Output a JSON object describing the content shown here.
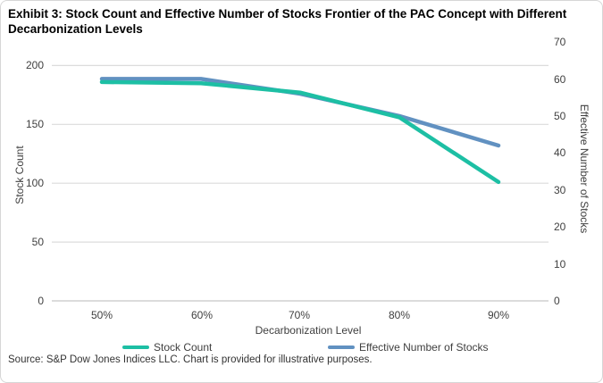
{
  "title": "Exhibit 3: Stock Count and Effective Number of Stocks Frontier of the PAC Concept with Different Decarbonization Levels",
  "source": "Source: S&P Dow Jones Indices LLC. Chart is provided for illustrative purposes.",
  "colors": {
    "stock_count_line": "#1dbfa4",
    "effective_number_line": "#6191c1",
    "gridline": "#dcdcdc",
    "axis_zero_line": "#c8c8c8",
    "text": "#3f3f3f"
  },
  "chart_data": {
    "type": "line",
    "categories": [
      "50%",
      "60%",
      "70%",
      "80%",
      "90%"
    ],
    "series": [
      {
        "name": "Stock Count",
        "axis": "left",
        "color": "#1dbfa4",
        "values": [
          186,
          185,
          177,
          156,
          101
        ]
      },
      {
        "name": "Effective Number of Stocks",
        "axis": "right",
        "color": "#6191c1",
        "values": [
          60,
          60,
          56,
          50,
          42
        ]
      }
    ],
    "xlabel": "Decarbonization Level",
    "ylabel_left": "Stock Count",
    "ylabel_right": "Effective Number of Stocks",
    "ylim_left": [
      0,
      200
    ],
    "ylim_right": [
      0,
      70
    ],
    "left_ticks": [
      "200",
      "150",
      "100",
      "50",
      "0"
    ],
    "right_ticks": [
      "70",
      "60",
      "50",
      "40",
      "30",
      "20",
      "10",
      "0"
    ],
    "left_tick_values": [
      200,
      150,
      100,
      50,
      0
    ],
    "grid": "horizontal-left-axis",
    "legend_position": "bottom"
  }
}
